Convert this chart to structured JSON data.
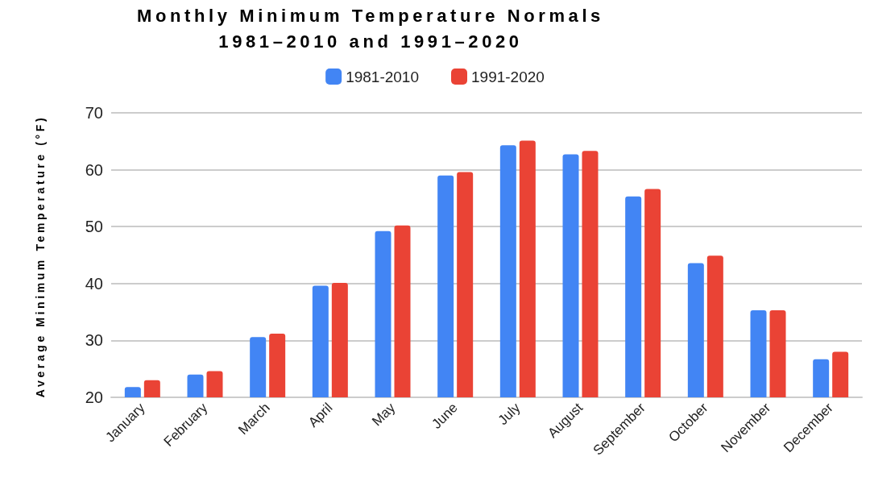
{
  "chart_data": {
    "type": "bar",
    "title": "Monthly Minimum Temperature Normals\n1981–2010 and 1991–2020",
    "ylabel": "Average Minimum Temperature (°F)",
    "categories": [
      "January",
      "February",
      "March",
      "April",
      "May",
      "June",
      "July",
      "August",
      "September",
      "October",
      "November",
      "December"
    ],
    "series": [
      {
        "name": "1981-2010",
        "color": "#4285f4",
        "values": [
          21.8,
          24.0,
          30.6,
          39.6,
          49.2,
          59.0,
          64.3,
          62.7,
          55.3,
          43.6,
          35.3,
          26.7
        ]
      },
      {
        "name": "1991-2020",
        "color": "#ea4335",
        "values": [
          23.0,
          24.6,
          31.2,
          40.1,
          50.2,
          59.6,
          65.1,
          63.3,
          56.6,
          44.9,
          35.3,
          28.0
        ]
      }
    ],
    "ylim": [
      20,
      70
    ],
    "yticks": [
      20,
      30,
      40,
      50,
      60,
      70
    ],
    "grid": "y",
    "legend": "top"
  }
}
